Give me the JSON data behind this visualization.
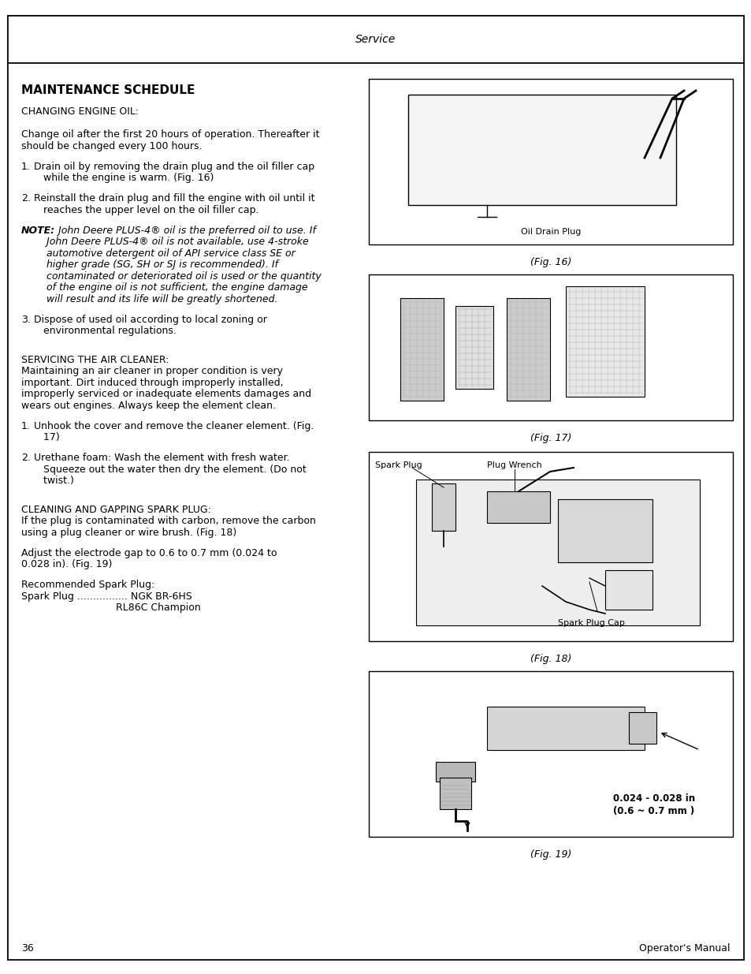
{
  "page_title": "Service",
  "page_number": "36",
  "page_footer": "Operator's Manual",
  "bg_color": "#ffffff",
  "border_color": "#000000",
  "text_color": "#000000",
  "section_title": "MAINTENANCE SCHEDULE",
  "changing_oil_header": "CHANGING ENGINE OIL:",
  "changing_oil_intro_1": "Change oil after the first 20 hours of operation. Thereafter it",
  "changing_oil_intro_2": "should be changed every 100 hours.",
  "step1_num": "1.",
  "step1_line1": "Drain oil by removing the drain plug and the oil filler cap",
  "step1_line2": "   while the engine is warm. (Fig. 16)",
  "step2_num": "2.",
  "step2_line1": "Reinstall the drain plug and fill the engine with oil until it",
  "step2_line2": "   reaches the upper level on the oil filler cap.",
  "note_label": "NOTE:",
  "note_line1": " John Deere PLUS-4® oil is the preferred oil to use. If",
  "note_line2": "        John Deere PLUS-4® oil is not available, use 4-stroke",
  "note_line3": "        automotive detergent oil of API service class SE or",
  "note_line4": "        higher grade (SG, SH or SJ is recommended). If",
  "note_line5": "        contaminated or deteriorated oil is used or the quantity",
  "note_line6": "        of the engine oil is not sufficient, the engine damage",
  "note_line7": "        will result and its life will be greatly shortened.",
  "step3_num": "3.",
  "step3_line1": "Dispose of used oil according to local zoning or",
  "step3_line2": "   environmental regulations.",
  "air_cleaner_header": "SERVICING THE AIR CLEANER:",
  "air_intro_1": "Maintaining an air cleaner in proper condition is very",
  "air_intro_2": "important. Dirt induced through improperly installed,",
  "air_intro_3": "improperly serviced or inadequate elements damages and",
  "air_intro_4": "wears out engines. Always keep the element clean.",
  "ac1_num": "1.",
  "ac1_line1": "Unhook the cover and remove the cleaner element. (Fig.",
  "ac1_line2": "   17)",
  "ac2_num": "2.",
  "ac2_line1": "Urethane foam: Wash the element with fresh water.",
  "ac2_line2": "   Squeeze out the water then dry the element. (Do not",
  "ac2_line3": "   twist.)",
  "spark_header": "CLEANING AND GAPPING SPARK PLUG:",
  "spark_intro_1": "If the plug is contaminated with carbon, remove the carbon",
  "spark_intro_2": "using a plug cleaner or wire brush. (Fig. 18)",
  "spark_gap_1": "Adjust the electrode gap to 0.6 to 0.7 mm (0.024 to",
  "spark_gap_2": "0.028 in). (Fig. 19)",
  "spark_rec": "Recommended Spark Plug:",
  "spark_line1": "Spark Plug ................ NGK BR-6HS",
  "spark_line2": "                              RL86C Champion",
  "fig16_caption": "(Fig. 16)",
  "fig16_label": "Oil Drain Plug",
  "fig17_caption": "(Fig. 17)",
  "fig18_caption": "(Fig. 18)",
  "fig18_label1": "Spark Plug",
  "fig18_label2": "Plug Wrench",
  "fig18_label3": "Spark Plug Cap",
  "fig19_caption": "(Fig. 19)",
  "fig19_label_1": "0.024 - 0.028 in",
  "fig19_label_2": "(0.6 ~ 0.7 mm )"
}
